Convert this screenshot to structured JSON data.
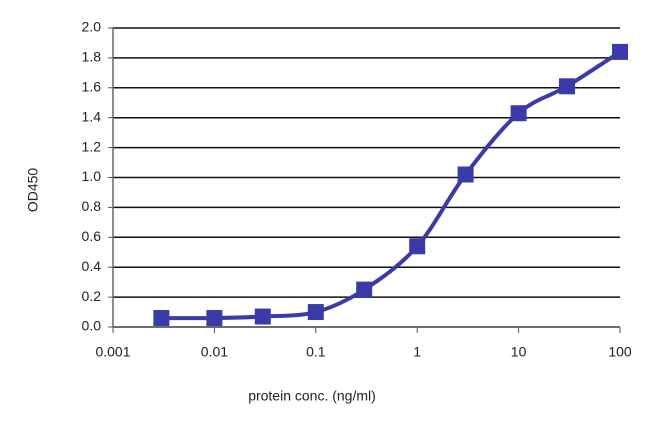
{
  "chart_data": {
    "type": "line",
    "xlabel": "protein conc. (ng/ml)",
    "ylabel": "OD450",
    "x": [
      0.003,
      0.01,
      0.03,
      0.1,
      0.3,
      1,
      3,
      10,
      30,
      100
    ],
    "series": [
      {
        "color": "#3a3aa8",
        "values": [
          0.06,
          0.06,
          0.07,
          0.1,
          0.25,
          0.54,
          1.02,
          1.43,
          1.61,
          1.84
        ]
      }
    ],
    "xlim": [
      0.001,
      100
    ],
    "xticks": [
      0.001,
      0.01,
      0.1,
      1,
      10,
      100
    ],
    "xlog": true,
    "ylim": [
      0,
      2
    ],
    "yticks": [
      {
        "value": 0,
        "label": "0.0"
      },
      0.2,
      0.4,
      0.6,
      0.8,
      {
        "value": 1,
        "label": "1.0"
      },
      1.2,
      1.4,
      1.6,
      1.8,
      {
        "value": 2,
        "label": "2.0"
      }
    ],
    "grid": true
  }
}
